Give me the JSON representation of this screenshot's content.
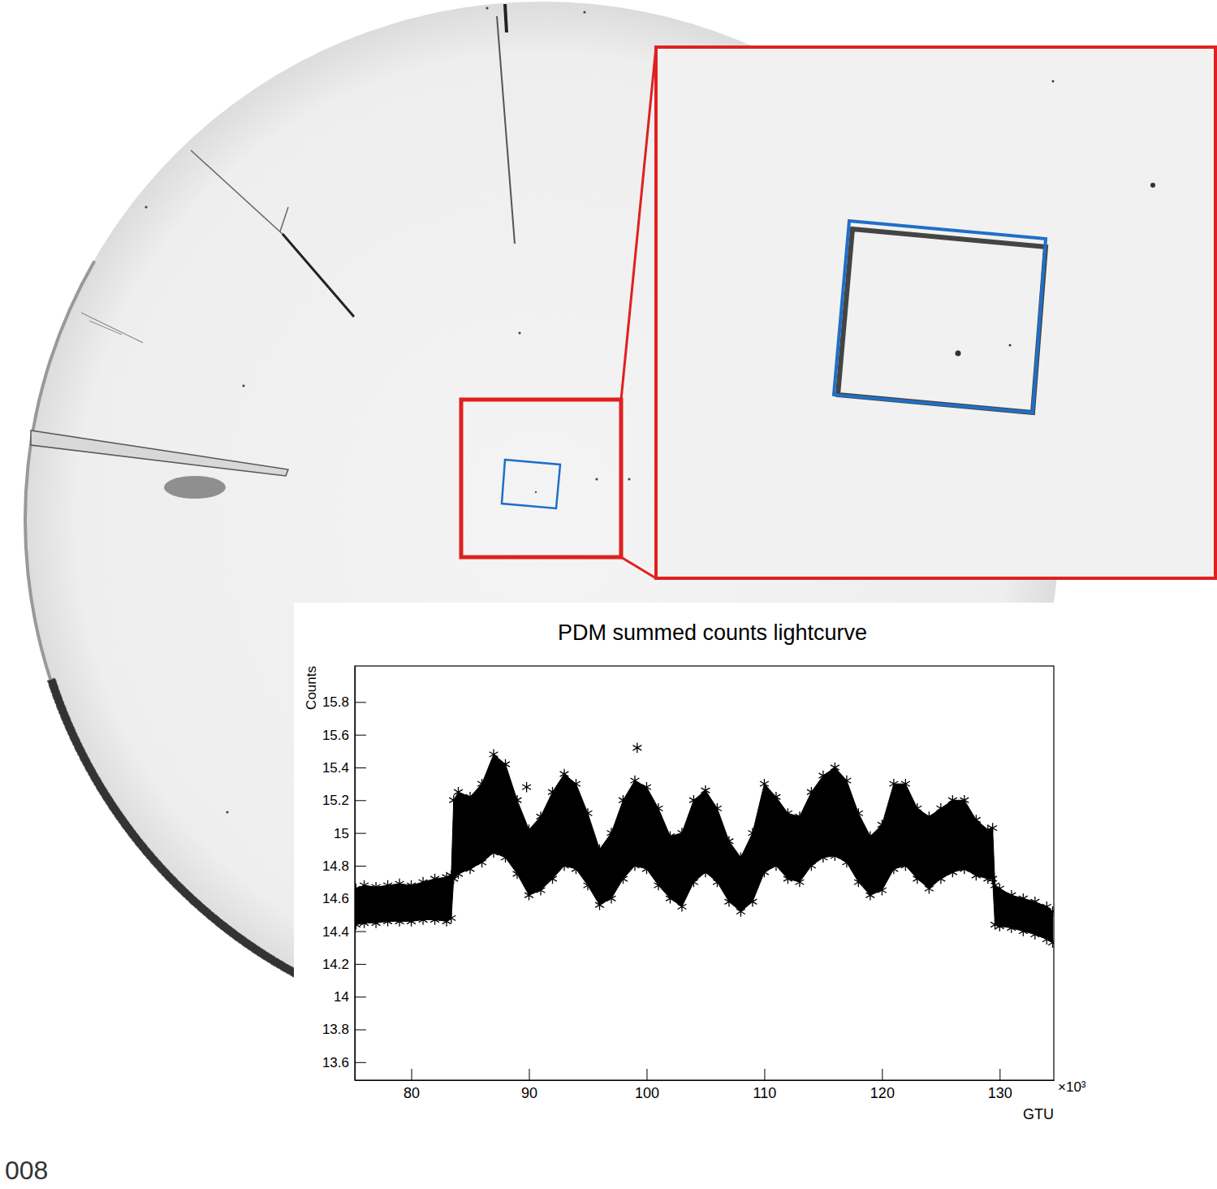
{
  "chart_data": {
    "type": "scatter",
    "title": "PDM summed counts lightcurve",
    "x_label": "GTU",
    "y_label": "Counts",
    "annotations": [
      "×10³",
      "008"
    ],
    "x": [
      75.3,
      76,
      77,
      78,
      79,
      80,
      81,
      82,
      83,
      83.4,
      83.6,
      84,
      85,
      86,
      87,
      88,
      89,
      90,
      91,
      92,
      93,
      94,
      95,
      96,
      97,
      98,
      99,
      100,
      101,
      102,
      103,
      104,
      105,
      106,
      107,
      108,
      109,
      110,
      111,
      112,
      113,
      114,
      115,
      116,
      117,
      118,
      119,
      120,
      121,
      122,
      123,
      124,
      125,
      126,
      127,
      128,
      129,
      129.4,
      129.6,
      130,
      131,
      132,
      133,
      134,
      134.5
    ],
    "series": [
      {
        "values": [
          14.66,
          14.68,
          14.67,
          14.68,
          14.69,
          14.68,
          14.7,
          14.72,
          14.73,
          14.74,
          15.2,
          15.25,
          15.22,
          15.3,
          15.48,
          15.42,
          15.2,
          15.02,
          15.1,
          15.25,
          15.36,
          15.3,
          15.12,
          14.9,
          15.0,
          15.2,
          15.32,
          15.28,
          15.15,
          14.98,
          15.0,
          15.2,
          15.26,
          15.15,
          14.95,
          14.85,
          15.0,
          15.3,
          15.22,
          15.12,
          15.1,
          15.25,
          15.35,
          15.4,
          15.32,
          15.12,
          14.98,
          15.05,
          15.3,
          15.3,
          15.15,
          15.1,
          15.15,
          15.2,
          15.2,
          15.08,
          15.02,
          15.03,
          14.68,
          14.66,
          14.62,
          14.6,
          14.58,
          14.55,
          14.52
        ],
        "color": "#000000",
        "marker": "asterisk"
      },
      {
        "values": [
          14.44,
          14.45,
          14.45,
          14.46,
          14.46,
          14.46,
          14.47,
          14.47,
          14.46,
          14.48,
          14.72,
          14.75,
          14.78,
          14.82,
          14.88,
          14.85,
          14.75,
          14.62,
          14.65,
          14.72,
          14.8,
          14.78,
          14.68,
          14.56,
          14.6,
          14.72,
          14.8,
          14.78,
          14.68,
          14.6,
          14.55,
          14.7,
          14.76,
          14.7,
          14.58,
          14.52,
          14.58,
          14.76,
          14.8,
          14.72,
          14.7,
          14.8,
          14.85,
          14.86,
          14.82,
          14.7,
          14.62,
          14.65,
          14.78,
          14.8,
          14.72,
          14.66,
          14.72,
          14.76,
          14.78,
          14.74,
          14.72,
          14.72,
          14.44,
          14.43,
          14.42,
          14.4,
          14.38,
          14.35,
          14.33
        ],
        "color": "#000000",
        "marker": "asterisk"
      },
      {
        "x": [
          89.8,
          99.2
        ],
        "values": [
          15.28,
          15.52
        ],
        "color": "#000000",
        "marker": "asterisk"
      }
    ],
    "xlim": [
      75.2,
      134.6
    ],
    "ylim": [
      13.49,
      16.02
    ],
    "xticks": [
      80,
      90,
      100,
      110,
      120,
      130
    ],
    "yticks": [
      13.6,
      13.8,
      14,
      14.2,
      14.4,
      14.6,
      14.8,
      15,
      15.2,
      15.4,
      15.6,
      15.8
    ],
    "grid": false
  }
}
